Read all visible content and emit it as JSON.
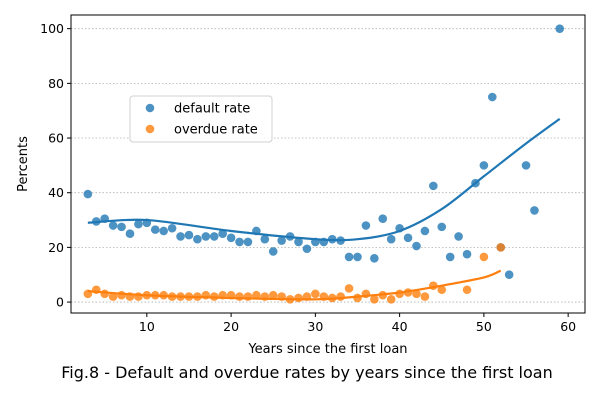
{
  "caption": "Fig.8 - Default and overdue rates by years since the first loan",
  "chart_data": {
    "type": "scatter",
    "xlabel": "Years since the first loan",
    "ylabel": "Percents",
    "xlim": [
      1,
      62
    ],
    "ylim": [
      -4,
      105
    ],
    "xticks": [
      10,
      20,
      30,
      40,
      50,
      60
    ],
    "yticks": [
      0,
      20,
      40,
      60,
      80,
      100
    ],
    "grid": "horizontal dotted",
    "legend_position": "upper-left",
    "series": [
      {
        "name": "default rate",
        "color": "#1f77b4",
        "x": [
          3,
          4,
          5,
          6,
          7,
          8,
          9,
          10,
          11,
          12,
          13,
          14,
          15,
          16,
          17,
          18,
          19,
          20,
          21,
          22,
          23,
          24,
          25,
          26,
          27,
          28,
          29,
          30,
          31,
          32,
          33,
          34,
          35,
          36,
          37,
          38,
          39,
          40,
          41,
          42,
          43,
          44,
          45,
          46,
          47,
          48,
          49,
          50,
          51,
          52,
          53,
          55,
          56,
          59
        ],
        "y": [
          39.5,
          29.5,
          30.5,
          28,
          27.5,
          25,
          28.5,
          29,
          26.5,
          26,
          27,
          24,
          24.5,
          23,
          24,
          24,
          25,
          23.5,
          22,
          22,
          26,
          23,
          18.5,
          22.5,
          24,
          22,
          19.5,
          22,
          22,
          23,
          22.5,
          16.5,
          16.5,
          28,
          16,
          30.5,
          23,
          27,
          23.5,
          20.5,
          26,
          42.5,
          27.5,
          16.5,
          24,
          17.5,
          43.5,
          50,
          75,
          20,
          10,
          50,
          33.5,
          100
        ]
      },
      {
        "name": "overdue rate",
        "color": "#ff7f0e",
        "x": [
          3,
          4,
          5,
          6,
          7,
          8,
          9,
          10,
          11,
          12,
          13,
          14,
          15,
          16,
          17,
          18,
          19,
          20,
          21,
          22,
          23,
          24,
          25,
          26,
          27,
          28,
          29,
          30,
          31,
          32,
          33,
          34,
          35,
          36,
          37,
          38,
          39,
          40,
          41,
          42,
          43,
          44,
          45,
          48,
          50,
          52
        ],
        "y": [
          3,
          4.5,
          3,
          2,
          2.5,
          2,
          2,
          2.5,
          2.5,
          2.5,
          2,
          2,
          2,
          2,
          2.5,
          2,
          2.5,
          2.5,
          2,
          2,
          2.5,
          2,
          2.5,
          2,
          1,
          1.5,
          2,
          3,
          2,
          1.5,
          2,
          5,
          1.5,
          3,
          1,
          2.5,
          1,
          3,
          3.5,
          3,
          2,
          6,
          4.5,
          4.5,
          16.5,
          20
        ]
      }
    ],
    "trend_lines": [
      {
        "series": "default rate",
        "degree": 3,
        "points": [
          [
            3,
            29
          ],
          [
            10,
            30
          ],
          [
            20,
            26
          ],
          [
            30,
            23
          ],
          [
            35,
            23
          ],
          [
            40,
            26
          ],
          [
            45,
            34
          ],
          [
            50,
            46
          ],
          [
            55,
            58
          ],
          [
            59,
            67
          ]
        ]
      },
      {
        "series": "overdue rate",
        "degree": 3,
        "points": [
          [
            3,
            4
          ],
          [
            10,
            2.5
          ],
          [
            20,
            1.5
          ],
          [
            30,
            1
          ],
          [
            35,
            2
          ],
          [
            40,
            3.5
          ],
          [
            45,
            6
          ],
          [
            50,
            9
          ],
          [
            52,
            11.5
          ]
        ]
      }
    ]
  }
}
